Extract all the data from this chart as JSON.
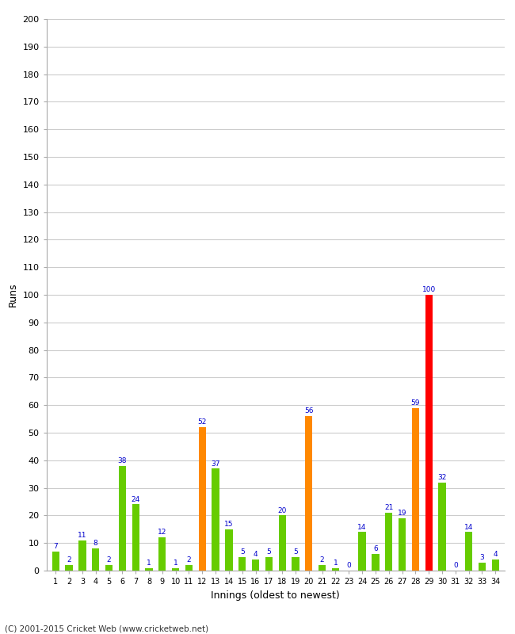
{
  "xlabel": "Innings (oldest to newest)",
  "ylabel": "Runs",
  "footer": "(C) 2001-2015 Cricket Web (www.cricketweb.net)",
  "ylim": [
    0,
    200
  ],
  "yticks": [
    0,
    10,
    20,
    30,
    40,
    50,
    60,
    70,
    80,
    90,
    100,
    110,
    120,
    130,
    140,
    150,
    160,
    170,
    180,
    190,
    200
  ],
  "innings": [
    1,
    2,
    3,
    4,
    5,
    6,
    7,
    8,
    9,
    10,
    11,
    12,
    13,
    14,
    15,
    16,
    17,
    18,
    19,
    20,
    21,
    22,
    23,
    24,
    25,
    26,
    27,
    28,
    29,
    30,
    31,
    32,
    33,
    34
  ],
  "values": [
    7,
    2,
    11,
    8,
    2,
    38,
    24,
    1,
    12,
    1,
    2,
    52,
    37,
    15,
    5,
    4,
    5,
    20,
    5,
    56,
    2,
    1,
    0,
    14,
    6,
    21,
    19,
    59,
    100,
    32,
    0,
    14,
    3,
    4
  ],
  "colors": [
    "#66cc00",
    "#66cc00",
    "#66cc00",
    "#66cc00",
    "#66cc00",
    "#66cc00",
    "#66cc00",
    "#66cc00",
    "#66cc00",
    "#66cc00",
    "#66cc00",
    "#ff8800",
    "#66cc00",
    "#66cc00",
    "#66cc00",
    "#66cc00",
    "#66cc00",
    "#66cc00",
    "#66cc00",
    "#ff8800",
    "#66cc00",
    "#66cc00",
    "#66cc00",
    "#66cc00",
    "#66cc00",
    "#66cc00",
    "#66cc00",
    "#ff8800",
    "#ff0000",
    "#66cc00",
    "#66cc00",
    "#66cc00",
    "#66cc00",
    "#66cc00"
  ],
  "label_color": "#0000cc",
  "bg_color": "#ffffff",
  "grid_color": "#cccccc",
  "bar_width": 0.55
}
